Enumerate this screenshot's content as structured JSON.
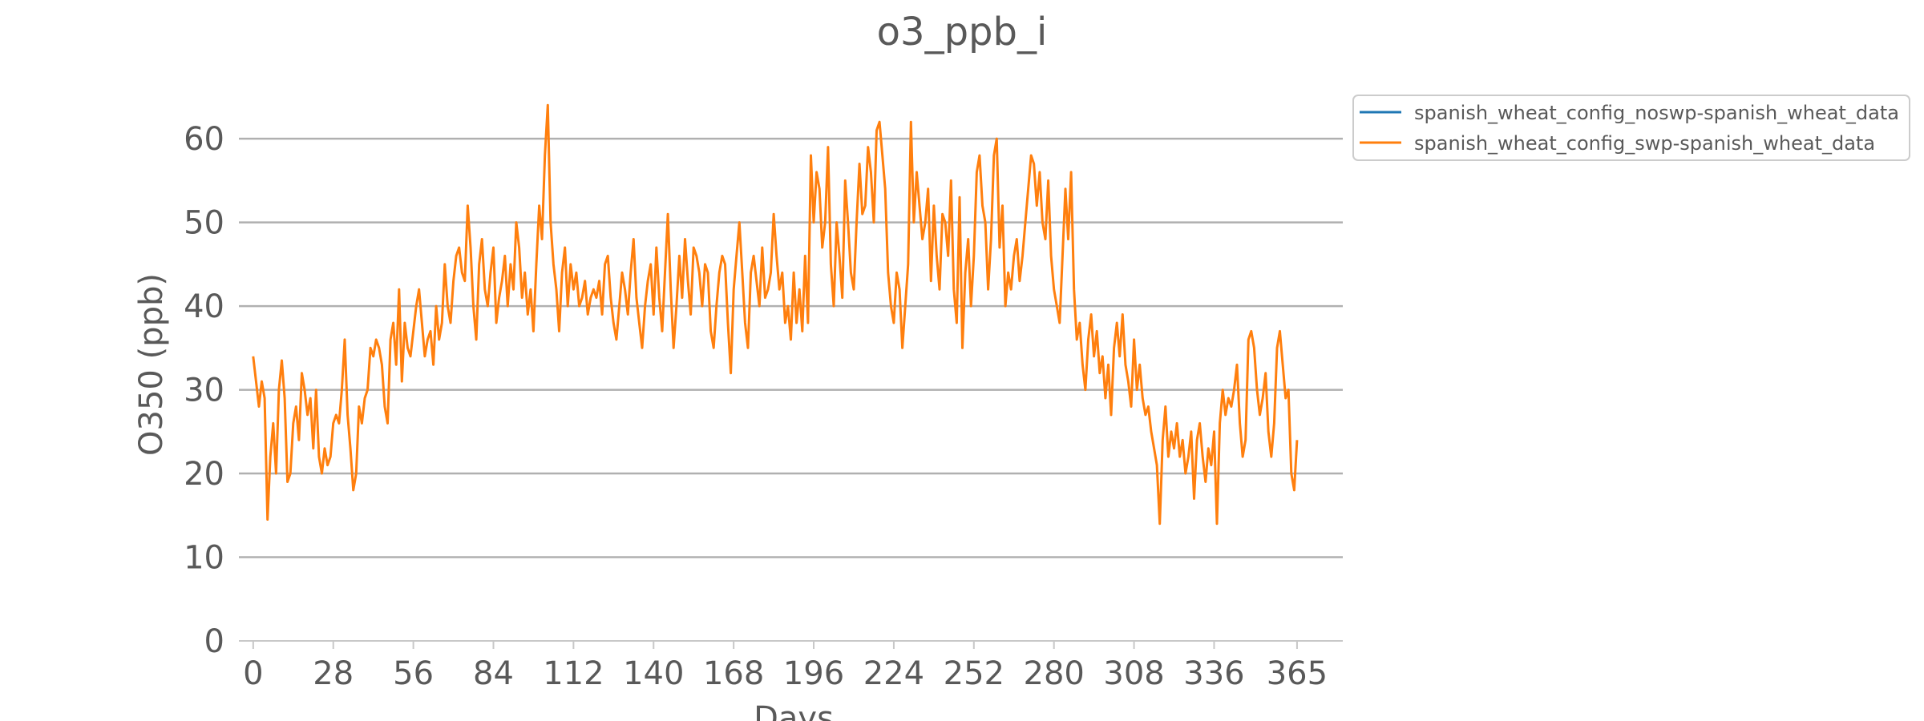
{
  "chart_data": {
    "type": "line",
    "title": "o3_ppb_i",
    "xlabel": "Days",
    "ylabel": "O350 (ppb)",
    "xlim": [
      -5,
      381
    ],
    "ylim": [
      0,
      67
    ],
    "xticks": [
      0,
      28,
      56,
      84,
      112,
      140,
      168,
      196,
      224,
      252,
      280,
      308,
      336,
      365
    ],
    "yticks": [
      0,
      10,
      20,
      30,
      40,
      50,
      60
    ],
    "grid": "y-major",
    "legend_position": "outside-top-right",
    "series": [
      {
        "name": "spanish_wheat_config_noswp-spanish_wheat_data",
        "color": "#1f77b4",
        "x": [],
        "y": []
      },
      {
        "name": "spanish_wheat_config_swp-spanish_wheat_data",
        "color": "#ff7f0e",
        "x": [
          0,
          1,
          2,
          3,
          4,
          5,
          6,
          7,
          8,
          9,
          10,
          11,
          12,
          13,
          14,
          15,
          16,
          17,
          18,
          19,
          20,
          21,
          22,
          23,
          24,
          25,
          26,
          27,
          28,
          29,
          30,
          31,
          32,
          33,
          34,
          35,
          36,
          37,
          38,
          39,
          40,
          41,
          42,
          43,
          44,
          45,
          46,
          47,
          48,
          49,
          50,
          51,
          52,
          53,
          54,
          55,
          56,
          57,
          58,
          59,
          60,
          61,
          62,
          63,
          64,
          65,
          66,
          67,
          68,
          69,
          70,
          71,
          72,
          73,
          74,
          75,
          76,
          77,
          78,
          79,
          80,
          81,
          82,
          83,
          84,
          85,
          86,
          87,
          88,
          89,
          90,
          91,
          92,
          93,
          94,
          95,
          96,
          97,
          98,
          99,
          100,
          101,
          102,
          103,
          104,
          105,
          106,
          107,
          108,
          109,
          110,
          111,
          112,
          113,
          114,
          115,
          116,
          117,
          118,
          119,
          120,
          121,
          122,
          123,
          124,
          125,
          126,
          127,
          128,
          129,
          130,
          131,
          132,
          133,
          134,
          135,
          136,
          137,
          138,
          139,
          140,
          141,
          142,
          143,
          144,
          145,
          146,
          147,
          148,
          149,
          150,
          151,
          152,
          153,
          154,
          155,
          156,
          157,
          158,
          159,
          160,
          161,
          162,
          163,
          164,
          165,
          166,
          167,
          168,
          169,
          170,
          171,
          172,
          173,
          174,
          175,
          176,
          177,
          178,
          179,
          180,
          181,
          182,
          183,
          184,
          185,
          186,
          187,
          188,
          189,
          190,
          191,
          192,
          193,
          194,
          195,
          196,
          197,
          198,
          199,
          200,
          201,
          202,
          203,
          204,
          205,
          206,
          207,
          208,
          209,
          210,
          211,
          212,
          213,
          214,
          215,
          216,
          217,
          218,
          219,
          220,
          221,
          222,
          223,
          224,
          225,
          226,
          227,
          228,
          229,
          230,
          231,
          232,
          233,
          234,
          235,
          236,
          237,
          238,
          239,
          240,
          241,
          242,
          243,
          244,
          245,
          246,
          247,
          248,
          249,
          250,
          251,
          252,
          253,
          254,
          255,
          256,
          257,
          258,
          259,
          260,
          261,
          262,
          263,
          264,
          265,
          266,
          267,
          268,
          269,
          270,
          271,
          272,
          273,
          274,
          275,
          276,
          277,
          278,
          279,
          280,
          281,
          282,
          283,
          284,
          285,
          286,
          287,
          288,
          289,
          290,
          291,
          292,
          293,
          294,
          295,
          296,
          297,
          298,
          299,
          300,
          301,
          302,
          303,
          304,
          305,
          306,
          307,
          308,
          309,
          310,
          311,
          312,
          313,
          314,
          315,
          316,
          317,
          318,
          319,
          320,
          321,
          322,
          323,
          324,
          325,
          326,
          327,
          328,
          329,
          330,
          331,
          332,
          333,
          334,
          335,
          336,
          337,
          338,
          339,
          340,
          341,
          342,
          343,
          344,
          345,
          346,
          347,
          348,
          349,
          350,
          351,
          352,
          353,
          354,
          355,
          356,
          357,
          358,
          359,
          360,
          361,
          362,
          363,
          364,
          365
        ],
        "y": [
          34,
          31,
          28,
          31,
          29,
          14.5,
          22,
          26,
          20,
          30,
          33.5,
          29,
          19,
          20,
          26,
          28,
          24,
          32,
          30,
          27,
          29,
          23,
          30,
          22,
          20,
          23,
          21,
          22,
          26,
          27,
          26,
          30,
          36,
          27,
          23,
          18,
          20,
          28,
          26,
          29,
          30,
          35,
          34,
          36,
          35,
          33,
          28,
          26,
          36,
          38,
          33,
          42,
          31,
          38,
          35,
          34,
          37,
          40,
          42,
          38,
          34,
          36,
          37,
          33,
          40,
          36,
          38,
          45,
          40,
          38,
          43,
          46,
          47,
          44,
          43,
          52,
          47,
          40,
          36,
          45,
          48,
          42,
          40,
          44,
          47,
          38,
          41,
          43,
          46,
          40,
          45,
          42,
          50,
          47,
          41,
          44,
          39,
          42,
          37,
          45,
          52,
          48,
          58,
          64,
          50,
          45,
          42,
          37,
          44,
          47,
          40,
          45,
          42,
          44,
          40,
          41,
          43,
          39,
          41,
          42,
          41,
          43,
          39,
          45,
          46,
          41,
          38,
          36,
          40,
          44,
          42,
          39,
          44,
          48,
          41,
          38,
          35,
          40,
          43,
          45,
          39,
          47,
          41,
          37,
          44,
          51,
          42,
          35,
          40,
          46,
          41,
          48,
          43,
          39,
          47,
          46,
          44,
          40,
          45,
          44,
          37,
          35,
          40,
          44,
          46,
          45,
          38,
          32,
          42,
          46,
          50,
          44,
          38,
          35,
          44,
          46,
          43,
          40,
          47,
          41,
          42,
          44,
          51,
          46,
          42,
          44,
          38,
          40,
          36,
          44,
          38,
          42,
          37,
          46,
          38,
          58,
          50,
          56,
          54,
          47,
          50,
          59,
          45,
          40,
          50,
          46,
          41,
          55,
          50,
          44,
          42,
          50,
          57,
          51,
          52,
          59,
          56,
          50,
          61,
          62,
          58,
          54,
          44,
          40,
          38,
          44,
          42,
          35,
          40,
          45,
          62,
          50,
          56,
          52,
          48,
          50,
          54,
          43,
          52,
          46,
          42,
          51,
          50,
          46,
          55,
          42,
          38,
          53,
          35,
          44,
          48,
          40,
          46,
          56,
          58,
          52,
          50,
          42,
          48,
          58,
          60,
          47,
          52,
          40,
          44,
          42,
          46,
          48,
          43,
          46,
          50,
          54,
          58,
          57,
          52,
          56,
          50,
          48,
          55,
          46,
          42,
          40,
          38,
          46,
          54,
          48,
          56,
          42,
          36,
          38,
          33,
          30,
          36,
          39,
          34,
          37,
          32,
          34,
          29,
          33,
          27,
          35,
          38,
          34,
          39,
          33,
          31,
          28,
          36,
          30,
          33,
          29,
          27,
          28,
          25,
          23,
          21,
          14,
          24,
          28,
          22,
          25,
          23,
          26,
          22,
          24,
          20,
          22,
          25,
          17,
          24,
          26,
          22,
          19,
          23,
          21,
          25,
          14,
          26,
          30,
          27,
          29,
          28,
          30,
          33,
          26,
          22,
          24,
          36,
          37,
          35,
          30,
          27,
          29,
          32,
          25,
          22,
          26,
          35,
          37,
          33,
          29,
          30,
          20,
          18,
          24
        ]
      }
    ]
  }
}
